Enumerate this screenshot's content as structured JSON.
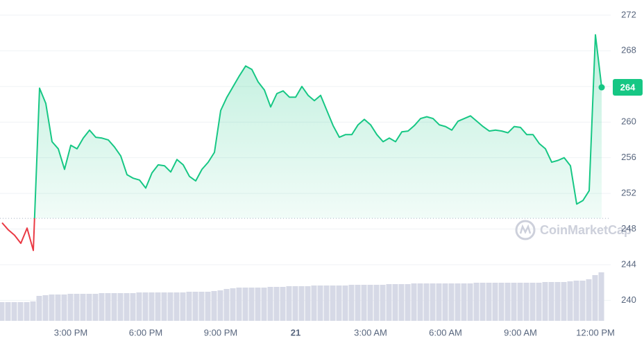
{
  "chart_data": {
    "type": "line",
    "watermark": "CoinMarketCap",
    "categories": [
      null,
      null,
      null,
      null,
      null,
      null,
      null,
      null,
      null,
      null,
      null,
      "3:00 PM",
      null,
      null,
      null,
      null,
      null,
      null,
      null,
      null,
      null,
      null,
      null,
      "6:00 PM",
      null,
      null,
      null,
      null,
      null,
      null,
      null,
      null,
      null,
      null,
      null,
      "9:00 PM",
      null,
      null,
      null,
      null,
      null,
      null,
      null,
      null,
      null,
      null,
      null,
      "21",
      null,
      null,
      null,
      null,
      null,
      null,
      null,
      null,
      null,
      null,
      null,
      "3:00 AM",
      null,
      null,
      null,
      null,
      null,
      null,
      null,
      null,
      null,
      null,
      null,
      "6:00 AM",
      null,
      null,
      null,
      null,
      null,
      null,
      null,
      null,
      null,
      null,
      null,
      "9:00 AM",
      null,
      null,
      null,
      null,
      null,
      null,
      null,
      null,
      null,
      null,
      null,
      "12:00 PM",
      null
    ],
    "series": [
      {
        "color": "#16c784",
        "below_color": "#ea3943",
        "values": [
          248.7,
          247.9,
          247.3,
          246.4,
          248.1,
          245.6,
          263.8,
          262.1,
          257.8,
          257.0,
          254.7,
          257.4,
          257.0,
          258.2,
          259.1,
          258.3,
          258.2,
          258.0,
          257.2,
          256.2,
          254.1,
          253.7,
          253.5,
          252.6,
          254.3,
          255.2,
          255.1,
          254.4,
          255.8,
          255.2,
          253.9,
          253.4,
          254.7,
          255.5,
          256.6,
          261.3,
          262.8,
          264.0,
          265.2,
          266.3,
          265.9,
          264.5,
          263.6,
          261.7,
          263.2,
          263.5,
          262.8,
          262.8,
          264.0,
          263.0,
          262.4,
          263.0,
          261.3,
          259.6,
          258.3,
          258.6,
          258.6,
          259.7,
          260.3,
          259.7,
          258.6,
          257.8,
          258.2,
          257.8,
          258.9,
          259.0,
          259.6,
          260.4,
          260.6,
          260.4,
          259.7,
          259.5,
          259.1,
          260.1,
          260.4,
          260.7,
          260.1,
          259.5,
          259.0,
          259.1,
          259.0,
          258.8,
          259.5,
          259.4,
          258.6,
          258.6,
          257.6,
          257.0,
          255.5,
          255.7,
          256.0,
          255.1,
          250.8,
          251.2,
          252.3,
          269.8,
          263.9
        ]
      }
    ],
    "volume": {
      "color": "#d6d9e6",
      "values": [
        27,
        27,
        27,
        27,
        27,
        28,
        36,
        37,
        38,
        38,
        38,
        39,
        39,
        39,
        39,
        39,
        40,
        40,
        40,
        40,
        40,
        40,
        41,
        41,
        41,
        41,
        41,
        41,
        41,
        41,
        42,
        42,
        42,
        42,
        43,
        44,
        46,
        47,
        48,
        48,
        48,
        48,
        48,
        49,
        49,
        49,
        50,
        50,
        50,
        50,
        51,
        51,
        51,
        51,
        51,
        51,
        52,
        52,
        52,
        52,
        52,
        52,
        53,
        53,
        53,
        53,
        54,
        54,
        54,
        54,
        54,
        54,
        54,
        54,
        54,
        54,
        55,
        55,
        55,
        55,
        55,
        55,
        55,
        55,
        55,
        55,
        55,
        56,
        56,
        56,
        56,
        57,
        58,
        58,
        60,
        66,
        70
      ]
    },
    "reference_line": 249.2,
    "price_tag": {
      "value": 263.9,
      "label": "264"
    },
    "ylim": [
      237.7,
      273.7
    ],
    "yticks": [
      240,
      244,
      248,
      252,
      256,
      260,
      264,
      268,
      272
    ],
    "grid": true
  }
}
